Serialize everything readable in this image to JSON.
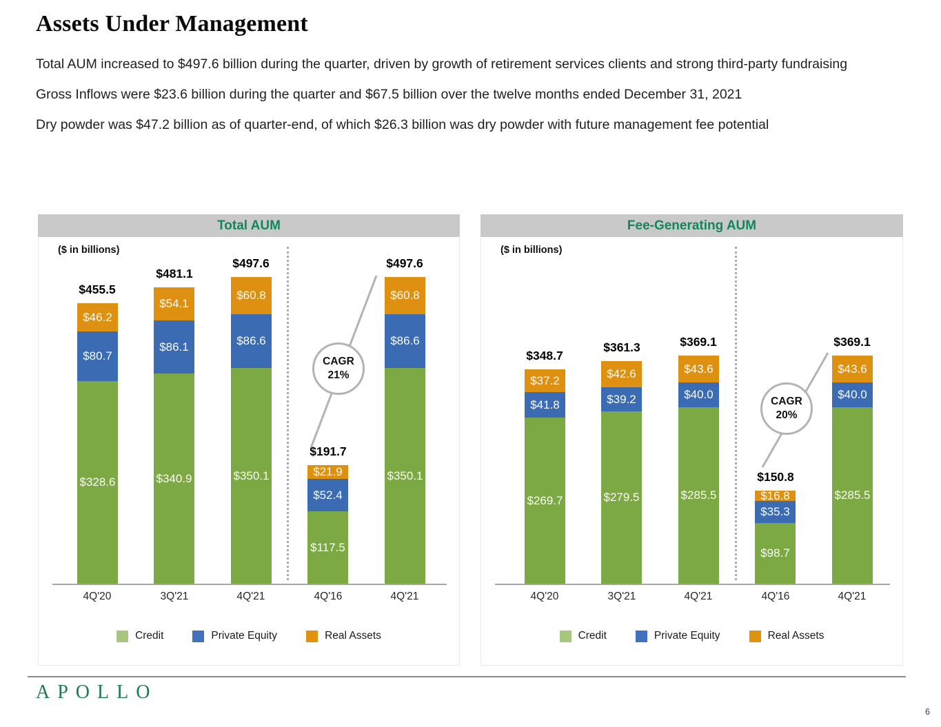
{
  "page": {
    "title": "Assets Under Management",
    "logo_text": "APOLLO",
    "page_number": "6"
  },
  "bullets": [
    "Total AUM increased to $497.6 billion during the quarter, driven by growth of retirement services clients and strong third-party fundraising",
    "Gross Inflows were $23.6 billion during the quarter and $67.5 billion over the twelve months ended December 31, 2021",
    "Dry powder was $47.2 billion as of quarter-end, of which $26.3 billion was dry powder with future management fee potential"
  ],
  "colors": {
    "chart_title_green": "#12875A",
    "header_bar_bg": "#C9C9C9",
    "credit_bar": "#7CA943",
    "private_equity_bar": "#3A6BB3",
    "real_assets_bar": "#DE9111",
    "credit_legend_swatch": "#A5C87D",
    "private_equity_legend_swatch": "#4072BD",
    "real_assets_legend_swatch": "#E0930F",
    "axis_gray": "#A6A6A6",
    "annotation_gray": "#B3B3B3",
    "logo_green": "#1E7B52"
  },
  "legend": [
    {
      "label": "Credit",
      "color_key": "credit"
    },
    {
      "label": "Private Equity",
      "color_key": "private_equity"
    },
    {
      "label": "Real Assets",
      "color_key": "real_assets"
    }
  ],
  "chart_data": [
    {
      "type": "bar",
      "stacked": true,
      "title": "Total AUM",
      "units_label": "($ in billions)",
      "categories": [
        "4Q'20",
        "3Q'21",
        "4Q'21",
        "4Q'16",
        "4Q'21"
      ],
      "series": [
        {
          "name": "Credit",
          "values": [
            328.6,
            340.9,
            350.1,
            117.5,
            350.1
          ]
        },
        {
          "name": "Private Equity",
          "values": [
            80.7,
            86.1,
            86.6,
            52.4,
            86.6
          ]
        },
        {
          "name": "Real Assets",
          "values": [
            46.2,
            54.1,
            60.8,
            21.9,
            60.8
          ]
        }
      ],
      "totals": [
        455.5,
        481.1,
        497.6,
        191.7,
        497.6
      ],
      "total_labels": [
        "$455.5",
        "$481.1",
        "$497.6",
        "$191.7",
        "$497.6"
      ],
      "cagr": {
        "label": "CAGR",
        "value": "21%"
      },
      "divider_after_category_index": 2,
      "legend_position": "bottom",
      "ylim": [
        0,
        560
      ],
      "grid": false
    },
    {
      "type": "bar",
      "stacked": true,
      "title": "Fee-Generating AUM",
      "units_label": "($ in billions)",
      "categories": [
        "4Q'20",
        "3Q'21",
        "4Q'21",
        "4Q'16",
        "4Q'21"
      ],
      "series": [
        {
          "name": "Credit",
          "values": [
            269.7,
            279.5,
            285.5,
            98.7,
            285.5
          ]
        },
        {
          "name": "Private Equity",
          "values": [
            41.8,
            39.2,
            40.0,
            35.3,
            40.0
          ]
        },
        {
          "name": "Real Assets",
          "values": [
            37.2,
            42.6,
            43.6,
            16.8,
            43.6
          ]
        }
      ],
      "totals": [
        348.7,
        361.3,
        369.1,
        150.8,
        369.1
      ],
      "total_labels": [
        "$348.7",
        "$361.3",
        "$369.1",
        "$150.8",
        "$369.1"
      ],
      "cagr": {
        "label": "CAGR",
        "value": "20%"
      },
      "divider_after_category_index": 2,
      "legend_position": "bottom",
      "ylim": [
        0,
        560
      ],
      "grid": false
    }
  ]
}
